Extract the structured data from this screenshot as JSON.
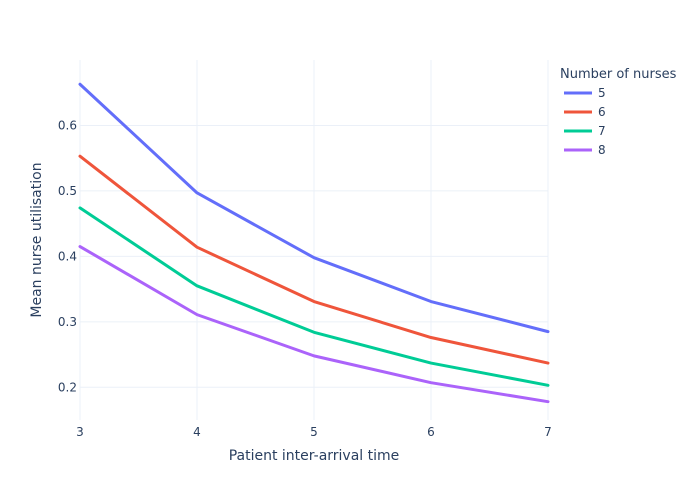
{
  "chart_data": {
    "type": "line",
    "xlabel": "Patient inter-arrival time",
    "ylabel": "Mean nurse utilisation",
    "x": [
      3,
      4,
      5,
      6,
      7
    ],
    "xlim": [
      3,
      7
    ],
    "ylim": [
      0.15,
      0.7
    ],
    "xticks": [
      "3",
      "4",
      "5",
      "6",
      "7"
    ],
    "yticks": [
      "0.2",
      "0.3",
      "0.4",
      "0.5",
      "0.6"
    ],
    "grid": true,
    "legend": {
      "title": "Number of nurses",
      "placement": "top-right"
    },
    "series": [
      {
        "name": "5",
        "color": "#636efa",
        "values": [
          0.663,
          0.497,
          0.398,
          0.331,
          0.285
        ]
      },
      {
        "name": "6",
        "color": "#ef553b",
        "values": [
          0.553,
          0.414,
          0.331,
          0.276,
          0.237
        ]
      },
      {
        "name": "7",
        "color": "#00cc96",
        "values": [
          0.474,
          0.355,
          0.284,
          0.237,
          0.203
        ]
      },
      {
        "name": "8",
        "color": "#ab63fa",
        "values": [
          0.415,
          0.311,
          0.248,
          0.207,
          0.178
        ]
      }
    ]
  }
}
